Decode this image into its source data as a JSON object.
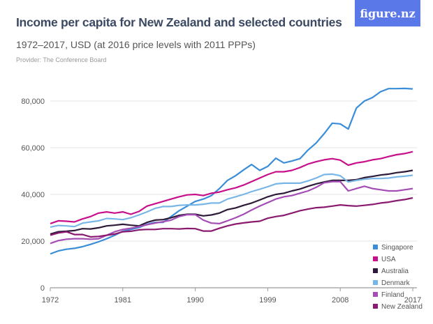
{
  "header": {
    "title": "Income per capita for New Zealand and selected countries",
    "subtitle": "1972–2017, USD (at 2016 price levels with 2011 PPPs)",
    "provider": "Provider: The Conference Board",
    "logo": "figure.nz",
    "logo_color": "#5b78e8"
  },
  "chart_data": {
    "type": "line",
    "title": "Income per capita for New Zealand and selected countries",
    "xlim": [
      1972,
      2017
    ],
    "ylim": [
      0,
      85000
    ],
    "x_ticks": [
      "1972",
      "1981",
      "1990",
      "1999",
      "2008",
      "2017"
    ],
    "y_ticks": [
      "0",
      "20,000",
      "40,000",
      "60,000",
      "80,000"
    ],
    "grid": true,
    "legend_position": "bottom-right",
    "x_start": 1972,
    "series": [
      {
        "name": "Singapore",
        "color": "#3a8dd8",
        "values": [
          14500,
          15800,
          16500,
          16900,
          17600,
          18600,
          19700,
          21000,
          22500,
          24200,
          25000,
          25800,
          27200,
          28000,
          28000,
          30500,
          33000,
          35000,
          37000,
          38000,
          39500,
          42500,
          46000,
          48000,
          50500,
          52800,
          50300,
          52000,
          55500,
          53500,
          54300,
          55300,
          59000,
          62000,
          66000,
          70500,
          70200,
          68000,
          77000,
          80000,
          81500,
          84000,
          85300,
          85300,
          85400,
          85200
        ]
      },
      {
        "name": "USA",
        "color": "#c8108a",
        "values": [
          27500,
          28700,
          28500,
          28200,
          29500,
          30500,
          32000,
          32500,
          32000,
          32500,
          31500,
          32700,
          35000,
          36000,
          37000,
          38000,
          39000,
          39800,
          40000,
          39500,
          40500,
          41000,
          42000,
          42800,
          44000,
          45500,
          47000,
          48500,
          49700,
          49700,
          50300,
          51500,
          53000,
          54000,
          54800,
          55300,
          54700,
          52500,
          53500,
          54000,
          54800,
          55300,
          56200,
          57000,
          57500,
          58300
        ]
      },
      {
        "name": "Australia",
        "color": "#2d1a38",
        "values": [
          23000,
          24000,
          24200,
          24500,
          25300,
          25200,
          25700,
          26500,
          26800,
          27200,
          26800,
          26500,
          28000,
          29000,
          29200,
          30000,
          31000,
          31500,
          31500,
          30800,
          31200,
          32000,
          33500,
          34200,
          35300,
          36300,
          37600,
          39000,
          40000,
          40500,
          41500,
          42300,
          43500,
          44500,
          45300,
          46000,
          46000,
          46000,
          46300,
          47200,
          47700,
          48300,
          48700,
          49300,
          49700,
          50300
        ]
      },
      {
        "name": "Denmark",
        "color": "#79b6e8",
        "values": [
          26000,
          26700,
          26500,
          26200,
          27700,
          28200,
          28700,
          29700,
          29500,
          29200,
          30000,
          31200,
          32500,
          34000,
          34800,
          34800,
          35300,
          35500,
          35500,
          35800,
          36300,
          36300,
          38000,
          39000,
          40000,
          41200,
          42200,
          43300,
          44500,
          44800,
          44800,
          44800,
          45800,
          47000,
          48500,
          48700,
          48000,
          45300,
          46000,
          46500,
          46800,
          46800,
          47000,
          47500,
          47800,
          48200
        ]
      },
      {
        "name": "Finland",
        "color": "#a44db5",
        "values": [
          19000,
          20200,
          20800,
          21000,
          21000,
          20800,
          21000,
          22500,
          24000,
          25000,
          25500,
          26200,
          27000,
          27700,
          28300,
          29000,
          30500,
          31300,
          31300,
          29000,
          27700,
          27500,
          28700,
          30000,
          31500,
          33300,
          35000,
          36500,
          38000,
          39000,
          39500,
          40500,
          41500,
          43000,
          45000,
          45500,
          45500,
          41500,
          42500,
          43500,
          42500,
          42000,
          41500,
          41500,
          42000,
          42500
        ]
      },
      {
        "name": "New Zealand",
        "color": "#8a1a6f",
        "values": [
          22500,
          23500,
          24000,
          22800,
          22800,
          21800,
          22000,
          22500,
          23000,
          24000,
          24200,
          24800,
          25000,
          25000,
          25300,
          25300,
          25200,
          25400,
          25300,
          24300,
          24300,
          25500,
          26500,
          27300,
          27800,
          28200,
          28500,
          29800,
          30500,
          31000,
          32000,
          33000,
          33700,
          34300,
          34500,
          35000,
          35500,
          35200,
          35000,
          35300,
          35700,
          36300,
          36700,
          37300,
          37800,
          38500
        ]
      }
    ]
  }
}
